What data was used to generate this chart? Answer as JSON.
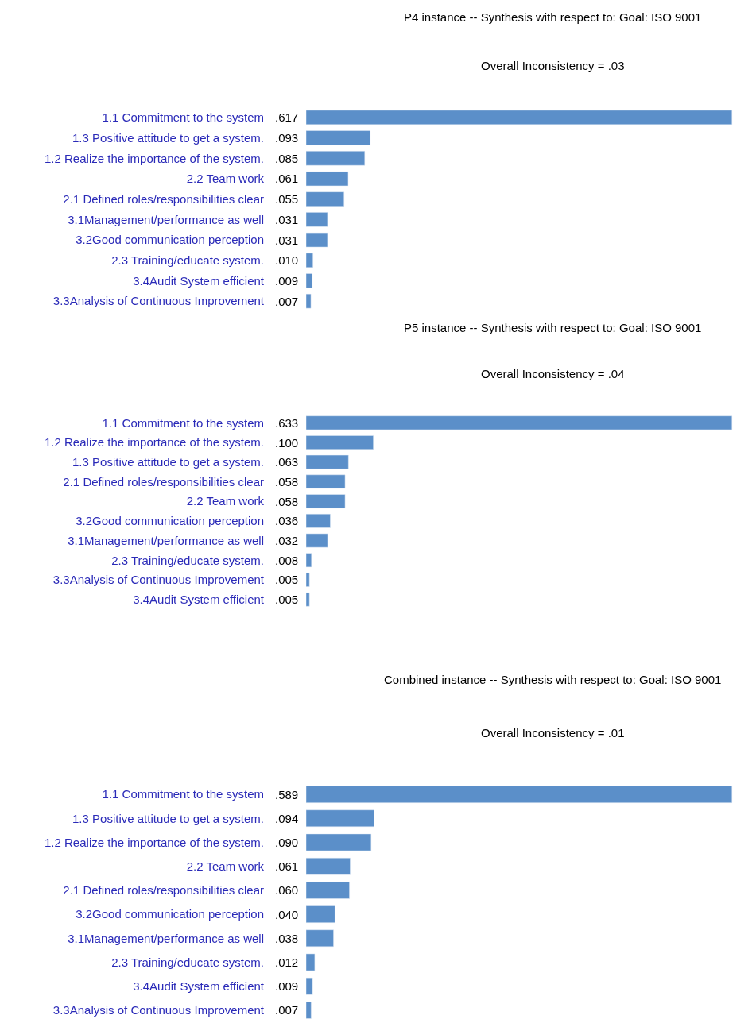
{
  "chart_data": [
    {
      "type": "bar",
      "orientation": "horizontal",
      "title": "P4 instance -- Synthesis with respect to: Goal: ISO 9001",
      "subtitle": "Overall Inconsistency = .03",
      "color": "#5b8fc9",
      "categories": [
        "1.1 Commitment to the system",
        "1.3 Positive attitude to get a system.",
        "1.2 Realize the importance of the system.",
        "2.2 Team work",
        "2.1 Defined roles/responsibilities clear",
        "3.1Management/performance as well",
        "3.2Good communication perception",
        "2.3 Training/educate system.",
        "3.4Audit System efficient",
        "3.3Analysis of Continuous Improvement"
      ],
      "values": [
        0.617,
        0.093,
        0.085,
        0.061,
        0.055,
        0.031,
        0.031,
        0.01,
        0.009,
        0.007
      ],
      "value_labels": [
        ".617",
        ".093",
        ".085",
        ".061",
        ".055",
        ".031",
        ".031",
        ".010",
        ".009",
        ".007"
      ]
    },
    {
      "type": "bar",
      "orientation": "horizontal",
      "title": "P5 instance -- Synthesis with respect to: Goal: ISO 9001",
      "subtitle": "Overall Inconsistency = .04",
      "color": "#5b8fc9",
      "categories": [
        "1.1 Commitment to the system",
        "1.2 Realize the importance of the system.",
        "1.3 Positive attitude to get a system.",
        "2.1 Defined roles/responsibilities clear",
        "2.2 Team work",
        "3.2Good communication perception",
        "3.1Management/performance as well",
        "2.3 Training/educate system.",
        "3.3Analysis of Continuous Improvement",
        "3.4Audit System efficient"
      ],
      "values": [
        0.633,
        0.1,
        0.063,
        0.058,
        0.058,
        0.036,
        0.032,
        0.008,
        0.005,
        0.005
      ],
      "value_labels": [
        ".633",
        ".100",
        ".063",
        ".058",
        ".058",
        ".036",
        ".032",
        ".008",
        ".005",
        ".005"
      ]
    },
    {
      "type": "bar",
      "orientation": "horizontal",
      "title": "Combined instance -- Synthesis with respect to: Goal: ISO 9001",
      "subtitle": "Overall Inconsistency = .01",
      "color": "#5b8fc9",
      "categories": [
        "1.1 Commitment to the system",
        "1.3 Positive attitude to get a system.",
        "1.2 Realize the importance of the system.",
        "2.2 Team work",
        "2.1 Defined roles/responsibilities clear",
        "3.2Good communication perception",
        "3.1Management/performance as well",
        "2.3 Training/educate system.",
        "3.4Audit System efficient",
        "3.3Analysis of Continuous Improvement"
      ],
      "values": [
        0.589,
        0.094,
        0.09,
        0.061,
        0.06,
        0.04,
        0.038,
        0.012,
        0.009,
        0.007
      ],
      "value_labels": [
        ".589",
        ".094",
        ".090",
        ".061",
        ".060",
        ".040",
        ".038",
        ".012",
        ".009",
        ".007"
      ]
    }
  ]
}
